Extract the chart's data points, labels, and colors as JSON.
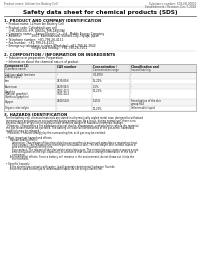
{
  "title": "Safety data sheet for chemical products (SDS)",
  "header_left": "Product name: Lithium Ion Battery Cell",
  "header_right_1": "Substance number: SDS-EB-00010",
  "header_right_2": "Establishment / Revision: Dec.7.2018",
  "background_color": "#ffffff",
  "section1_title": "1. PRODUCT AND COMPANY IDENTIFICATION",
  "section1_lines": [
    "• Product name: Lithium Ion Battery Cell",
    "• Product code: Cylindrical-type cell",
    "   (IHR-18650U, IHR-18650L, IHR-18650A)",
    "• Company name:    Sanyo Electric Co., Ltd., Mobile Energy Company",
    "• Address:            2001  Kamimaruwa, Sumoto-City, Hyogo, Japan",
    "• Telephone number:  +81-799-26-4111",
    "• Fax number:  +81-799-26-4121",
    "• Emergency telephone number (Weekday): +81-799-26-3642",
    "                              (Night and holiday): +81-799-26-3101"
  ],
  "section2_title": "2. COMPOSITION / INFORMATION ON INGREDIENTS",
  "section2_lines": [
    "• Substance or preparation: Preparation",
    "• Information about the chemical nature of product:"
  ],
  "table_header": [
    "Component (1)",
    "CAS number",
    "Concentration /\nConcentration range",
    "Classification and\nhazard labeling"
  ],
  "table_header_sub": "Common name",
  "table_rows": [
    [
      "Lithium cobalt laminate\n(LiMnxCoyO2)",
      "-",
      "(30-60%)",
      "-"
    ],
    [
      "Iron",
      "7439-89-6",
      "15-20%",
      "-"
    ],
    [
      "Aluminum",
      "7429-90-5",
      "2-5%",
      "-"
    ],
    [
      "Graphite\n(Natural graphite)\n(Artificial graphite)",
      "7782-42-5\n7782-44-2",
      "10-25%",
      "-"
    ],
    [
      "Copper",
      "7440-50-8",
      "5-15%",
      "Sensitization of the skin\ngroup R43"
    ],
    [
      "Organic electrolyte",
      "-",
      "10-20%",
      "Inflammable liquid"
    ]
  ],
  "section3_title": "3. HAZARDS IDENTIFICATION",
  "section3_lines": [
    "For the battery cell, chemical materials are stored in a hermetically sealed metal case, designed to withstand",
    "temperatures and pressures encountered during normal use. As a result, during normal use, there is no",
    "physical danger of ignition or explosion and therefore danger of hazardous materials leakage.",
    "  However, if exposed to a fire added mechanical shocks, decomposes, vented electric whose dry material,",
    "the gas release cannot be operated. The battery cell case will be breached of the pot-some, hazardous",
    "materials may be released.",
    "  Moreover, if heated strongly by the surrounding fire, acid gas may be emitted.",
    "",
    "• Most important hazard and effects:",
    "     Human health effects:",
    "        Inhalation: The release of the electrolyte has an anesthesia action and stimulates a respiratory tract.",
    "        Skin contact: The release of the electrolyte stimulates a skin. The electrolyte skin contact causes a",
    "        sore and stimulation on the skin.",
    "        Eye contact: The release of the electrolyte stimulates eyes. The electrolyte eye contact causes a sore",
    "        and stimulation on the eye. Especially, a substance that causes a strong inflammation of the eye is",
    "        contained.",
    "     Environmental effects: Since a battery cell remains in the environment, do not throw out it into the",
    "        environment.",
    "",
    "• Specific hazards:",
    "     If the electrolyte contacts with water, it will generate detrimental hydrogen fluoride.",
    "     Since the used electrolyte is inflammable liquid, do not bring close to fire."
  ]
}
